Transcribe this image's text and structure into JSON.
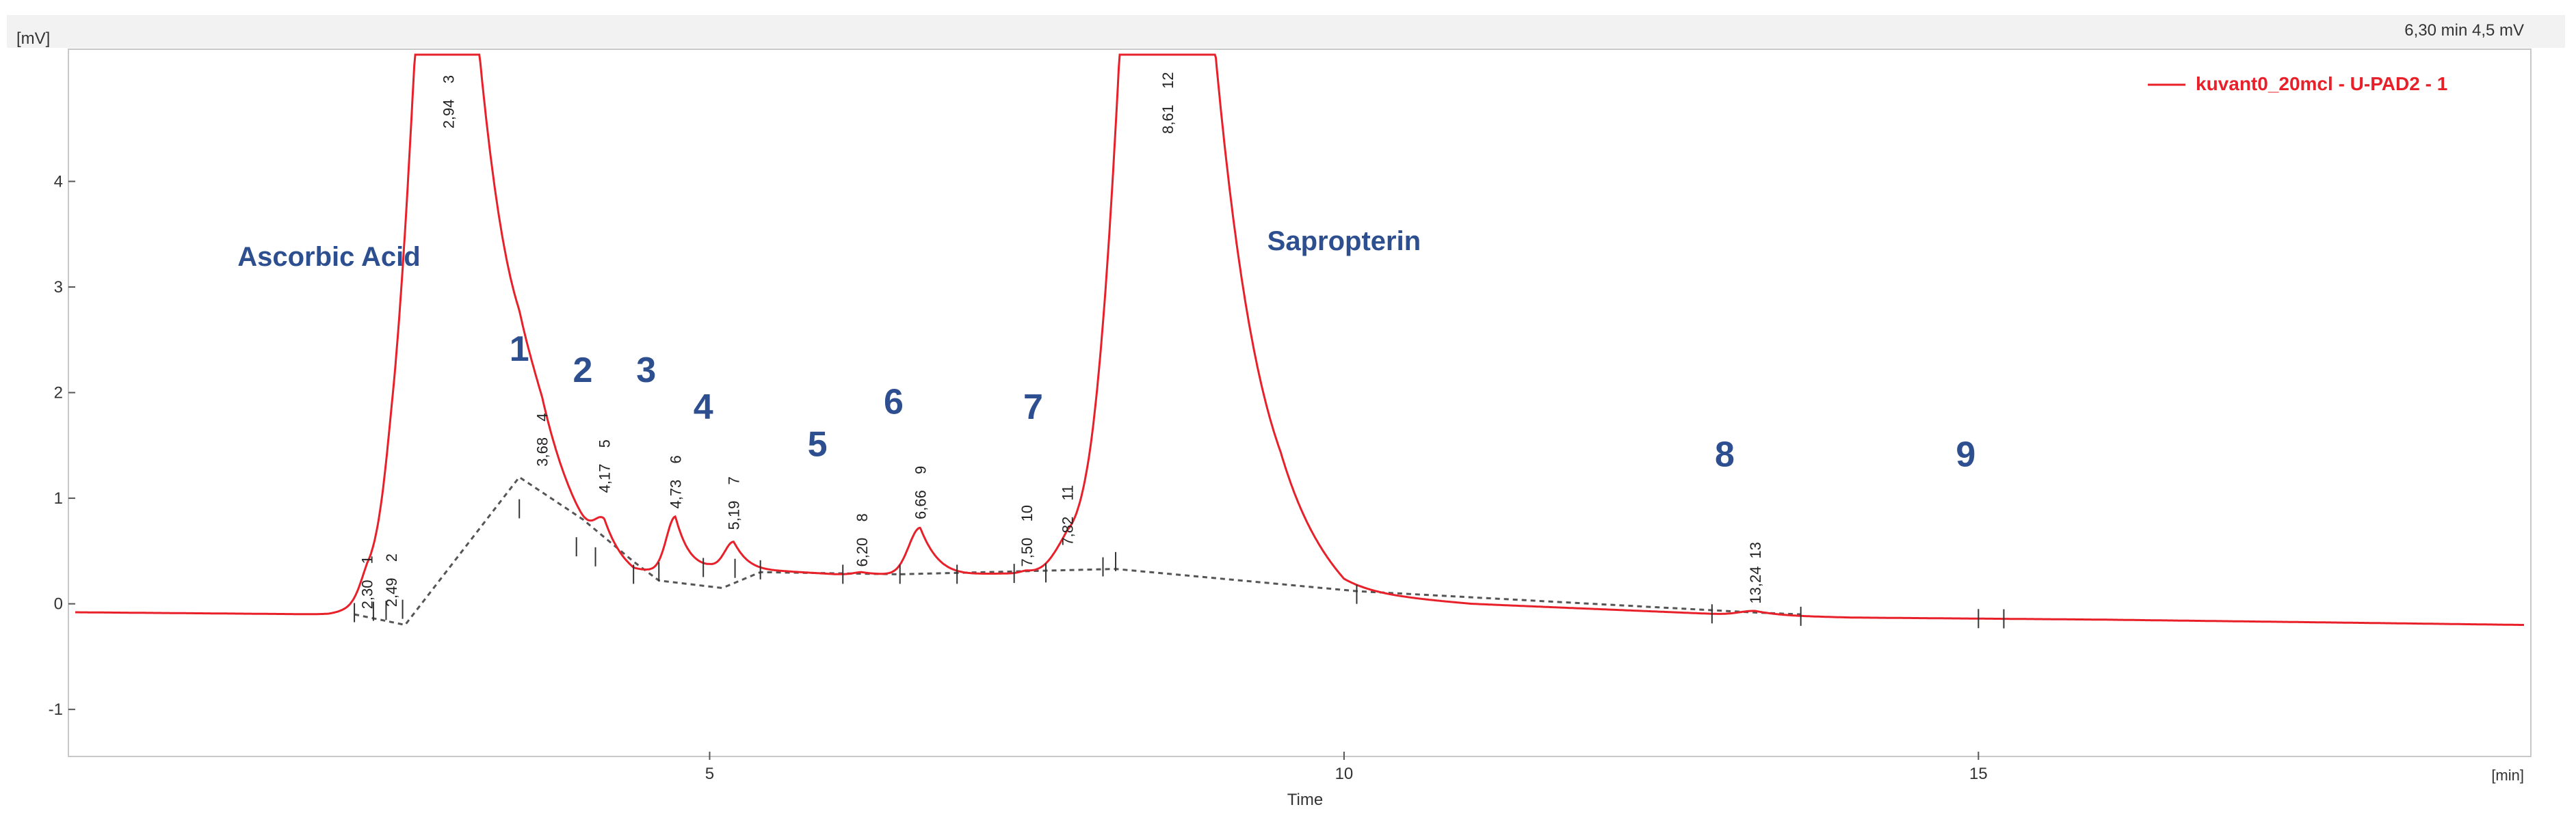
{
  "chart_data": {
    "type": "line",
    "xlabel": "Time",
    "x_unit": "[min]",
    "y_unit": "[mV]",
    "status_readout": "6,30 min  4,5 mV",
    "xlim": [
      0,
      19.3
    ],
    "ylim": [
      -1.4,
      5.2
    ],
    "x_ticks": [
      {
        "value": 5,
        "label": "5"
      },
      {
        "value": 10,
        "label": "10"
      },
      {
        "value": 15,
        "label": "15"
      }
    ],
    "y_ticks": [
      {
        "value": -1,
        "label": "-1"
      },
      {
        "value": 0,
        "label": "0"
      },
      {
        "value": 1,
        "label": "1"
      },
      {
        "value": 2,
        "label": "2"
      },
      {
        "value": 3,
        "label": "3"
      },
      {
        "value": 4,
        "label": "4"
      }
    ],
    "legend": {
      "entry": "kuvant0_20mcl - U-PAD2 - 1",
      "color": "#e8202a",
      "position": "top-right"
    },
    "series": [
      {
        "name": "kuvant0_20mcl - U-PAD2 - 1",
        "color": "#e8202a",
        "baseline": [
          [
            0,
            -0.08
          ],
          [
            2.0,
            -0.1
          ],
          [
            2.6,
            -0.05
          ],
          [
            2.7,
            0.05
          ],
          [
            3.0,
            0.4
          ],
          [
            3.5,
            0.9
          ],
          [
            4.0,
            0.5
          ],
          [
            4.4,
            0.28
          ],
          [
            5.0,
            0.35
          ],
          [
            6.0,
            0.28
          ],
          [
            7.0,
            0.28
          ],
          [
            8.0,
            0.3
          ],
          [
            8.5,
            0.55
          ],
          [
            9.5,
            0.5
          ],
          [
            10.0,
            0.1
          ],
          [
            11.0,
            0.0
          ],
          [
            12.0,
            -0.05
          ],
          [
            13.0,
            -0.1
          ],
          [
            14.0,
            -0.13
          ],
          [
            16.0,
            -0.15
          ],
          [
            18.0,
            -0.18
          ],
          [
            19.3,
            -0.2
          ]
        ],
        "peaks": [
          {
            "rt": 2.3,
            "height": 0.12,
            "width": 0.06
          },
          {
            "rt": 2.49,
            "height": 0.1,
            "width": 0.05
          },
          {
            "rt": 2.94,
            "height": 9.0,
            "width": 0.25
          },
          {
            "rt": 3.68,
            "height": 0.33,
            "width": 0.18
          },
          {
            "rt": 4.17,
            "height": 0.25,
            "width": 0.07
          },
          {
            "rt": 4.73,
            "height": 0.5,
            "width": 0.07
          },
          {
            "rt": 5.19,
            "height": 0.25,
            "width": 0.07
          },
          {
            "rt": 6.2,
            "height": 0.02,
            "width": 0.06
          },
          {
            "rt": 6.66,
            "height": 0.44,
            "width": 0.09
          },
          {
            "rt": 7.5,
            "height": 0.02,
            "width": 0.05
          },
          {
            "rt": 7.82,
            "height": 0.18,
            "width": 0.11
          },
          {
            "rt": 8.61,
            "height": 12.0,
            "width": 0.28
          },
          {
            "rt": 13.24,
            "height": 0.04,
            "width": 0.12
          }
        ]
      }
    ],
    "integration_baseline": [
      [
        2.2,
        -0.1
      ],
      [
        2.6,
        -0.2
      ],
      [
        3.5,
        1.2
      ],
      [
        4.0,
        0.8
      ],
      [
        4.4,
        0.4
      ],
      [
        4.6,
        0.22
      ],
      [
        5.1,
        0.15
      ],
      [
        5.4,
        0.3
      ],
      [
        6.5,
        0.28
      ],
      [
        8.2,
        0.33
      ],
      [
        10.1,
        0.12
      ],
      [
        13.2,
        -0.08
      ],
      [
        13.6,
        -0.1
      ]
    ],
    "peak_annotations": [
      {
        "rt": "2,30",
        "num": "1",
        "x": 2.3,
        "y": -0.05
      },
      {
        "rt": "2,49",
        "num": "2",
        "x": 2.49,
        "y": -0.03
      },
      {
        "rt": "2,94",
        "num": "3",
        "x": 2.94,
        "y": 4.5
      },
      {
        "rt": "3,68",
        "num": "4",
        "x": 3.68,
        "y": 1.3
      },
      {
        "rt": "4,17",
        "num": "5",
        "x": 4.17,
        "y": 1.05
      },
      {
        "rt": "4,73",
        "num": "6",
        "x": 4.73,
        "y": 0.9
      },
      {
        "rt": "5,19",
        "num": "7",
        "x": 5.19,
        "y": 0.7
      },
      {
        "rt": "6,20",
        "num": "8",
        "x": 6.2,
        "y": 0.35
      },
      {
        "rt": "6,66",
        "num": "9",
        "x": 6.66,
        "y": 0.8
      },
      {
        "rt": "7,50",
        "num": "10",
        "x": 7.5,
        "y": 0.35
      },
      {
        "rt": "7,82",
        "num": "11",
        "x": 7.82,
        "y": 0.55
      },
      {
        "rt": "8,61",
        "num": "12",
        "x": 8.61,
        "y": 4.45
      },
      {
        "rt": "13,24",
        "num": "13",
        "x": 13.24,
        "y": 0.0
      }
    ],
    "tick_marks": [
      2.2,
      2.35,
      2.45,
      2.58,
      3.5,
      3.95,
      4.1,
      4.4,
      4.6,
      4.95,
      5.2,
      5.4,
      6.05,
      6.5,
      6.95,
      7.4,
      7.65,
      8.1,
      8.2,
      10.1,
      12.9,
      13.6,
      15.0,
      15.2
    ],
    "annotations": [
      {
        "text": "Ascorbic Acid",
        "x": 2.0,
        "y": 3.2
      },
      {
        "text": "Sapropterin",
        "x": 10.0,
        "y": 3.35
      },
      {
        "text": "1",
        "x": 3.5,
        "y": 2.3
      },
      {
        "text": "2",
        "x": 4.0,
        "y": 2.1
      },
      {
        "text": "3",
        "x": 4.5,
        "y": 2.1
      },
      {
        "text": "4",
        "x": 4.95,
        "y": 1.75
      },
      {
        "text": "5",
        "x": 5.85,
        "y": 1.4
      },
      {
        "text": "6",
        "x": 6.45,
        "y": 1.8
      },
      {
        "text": "7",
        "x": 7.55,
        "y": 1.75
      },
      {
        "text": "8",
        "x": 13.0,
        "y": 1.3
      },
      {
        "text": "9",
        "x": 14.9,
        "y": 1.3
      }
    ]
  }
}
